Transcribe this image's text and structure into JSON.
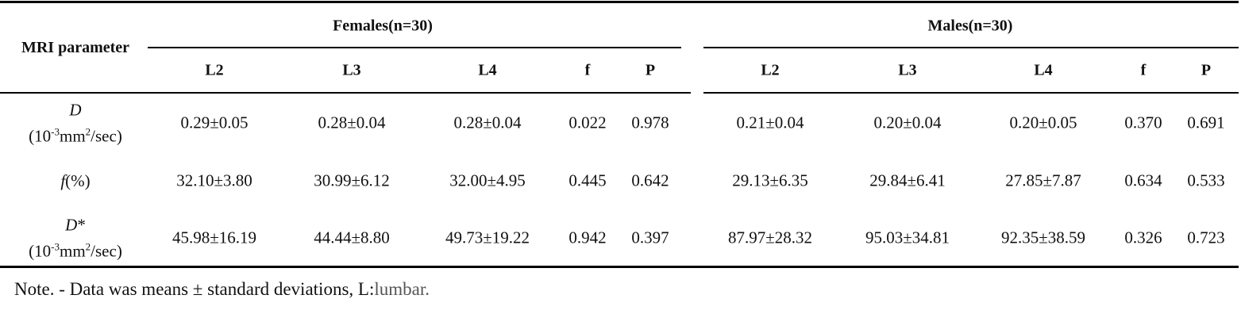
{
  "table": {
    "corner": "MRI parameter",
    "groups": [
      "Females(n=30)",
      "Males(n=30)"
    ],
    "columns": [
      "L2",
      "L3",
      "L4",
      "f",
      "P",
      "L2",
      "L3",
      "L4",
      "f",
      "P"
    ],
    "rows": [
      {
        "label": {
          "symbol": "D",
          "unit": [
            "(10",
            "-3",
            "mm",
            "2",
            "/sec)"
          ]
        },
        "cells": [
          "0.29±0.05",
          "0.28±0.04",
          "0.28±0.04",
          "0.022",
          "0.978",
          "0.21±0.04",
          "0.20±0.04",
          "0.20±0.05",
          "0.370",
          "0.691"
        ]
      },
      {
        "label": {
          "symbol": "f",
          "suffix": "(%)"
        },
        "cells": [
          "32.10±3.80",
          "30.99±6.12",
          "32.00±4.95",
          "0.445",
          "0.642",
          "29.13±6.35",
          "29.84±6.41",
          "27.85±7.87",
          "0.634",
          "0.533"
        ]
      },
      {
        "label": {
          "symbol": "D",
          "suffix": "*",
          "unit": [
            "(10",
            "-3",
            "mm",
            "2",
            "/sec)"
          ]
        },
        "cells": [
          "45.98±16.19",
          "44.44±8.80",
          "49.73±19.22",
          "0.942",
          "0.397",
          "87.97±28.32",
          "95.03±34.81",
          "92.35±38.59",
          "0.326",
          "0.723"
        ]
      }
    ]
  },
  "note": {
    "text": "Note. - Data was means ± standard deviations,  L:",
    "tail": "lumbar."
  }
}
